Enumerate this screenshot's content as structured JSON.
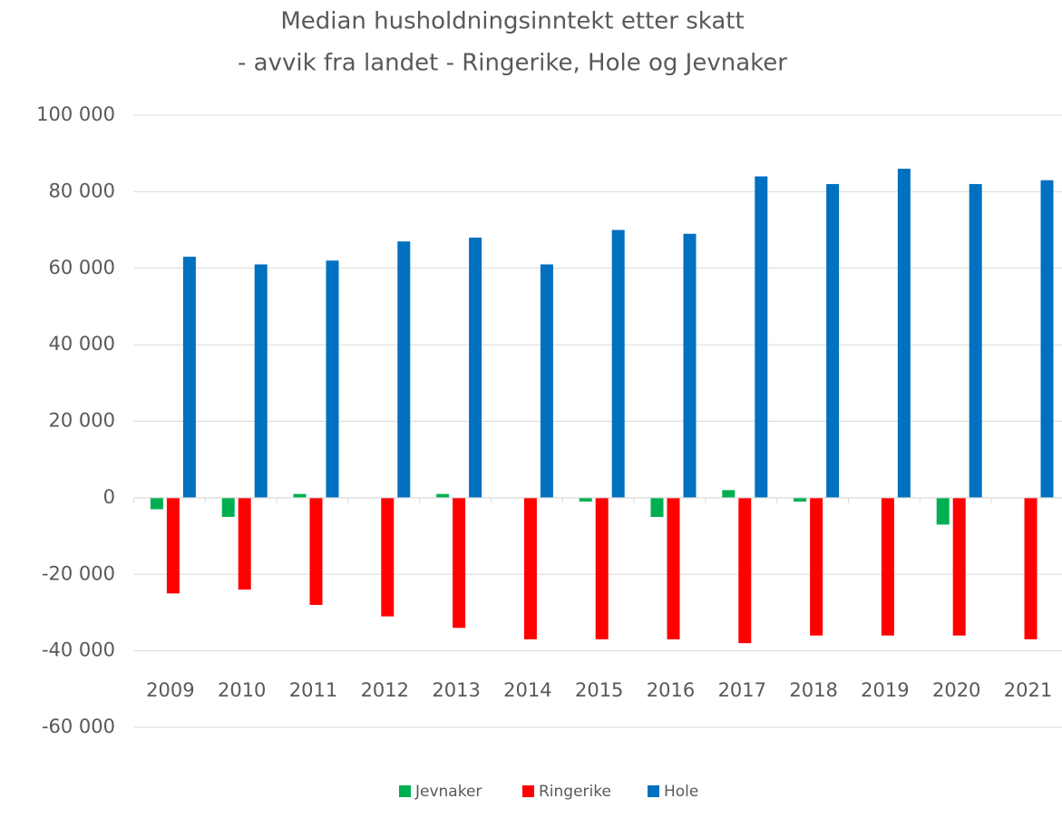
{
  "chart_data": {
    "type": "bar",
    "title": [
      "Median husholdningsinntekt etter skatt",
      "- avvik fra landet - Ringerike, Hole og Jevnaker"
    ],
    "categories": [
      "2009",
      "2010",
      "2011",
      "2012",
      "2013",
      "2014",
      "2015",
      "2016",
      "2017",
      "2018",
      "2019",
      "2020",
      "2021"
    ],
    "series": [
      {
        "name": "Jevnaker",
        "color": "#00b050",
        "values": [
          -3000,
          -5000,
          1000,
          0,
          1000,
          0,
          -1000,
          -5000,
          2000,
          -1000,
          0,
          -7000,
          0
        ]
      },
      {
        "name": "Ringerike",
        "color": "#ff0000",
        "values": [
          -25000,
          -24000,
          -28000,
          -31000,
          -34000,
          -37000,
          -37000,
          -37000,
          -38000,
          -36000,
          -36000,
          -36000,
          -37000
        ]
      },
      {
        "name": "Hole",
        "color": "#0070c0",
        "values": [
          63000,
          61000,
          62000,
          67000,
          68000,
          61000,
          70000,
          69000,
          84000,
          82000,
          86000,
          82000,
          83000
        ]
      }
    ],
    "ylim": [
      -60000,
      100000
    ],
    "yticks": [
      {
        "value": -60000,
        "label": "-60 000"
      },
      {
        "value": -40000,
        "label": "-40 000"
      },
      {
        "value": -20000,
        "label": "-20 000"
      },
      0,
      {
        "value": 20000,
        "label": "20 000"
      },
      {
        "value": 40000,
        "label": "40 000"
      },
      {
        "value": 60000,
        "label": "60 000"
      },
      {
        "value": 80000,
        "label": "80 000"
      },
      {
        "value": 100000,
        "label": "100 000"
      }
    ],
    "grid": true,
    "legend": "bottom"
  }
}
